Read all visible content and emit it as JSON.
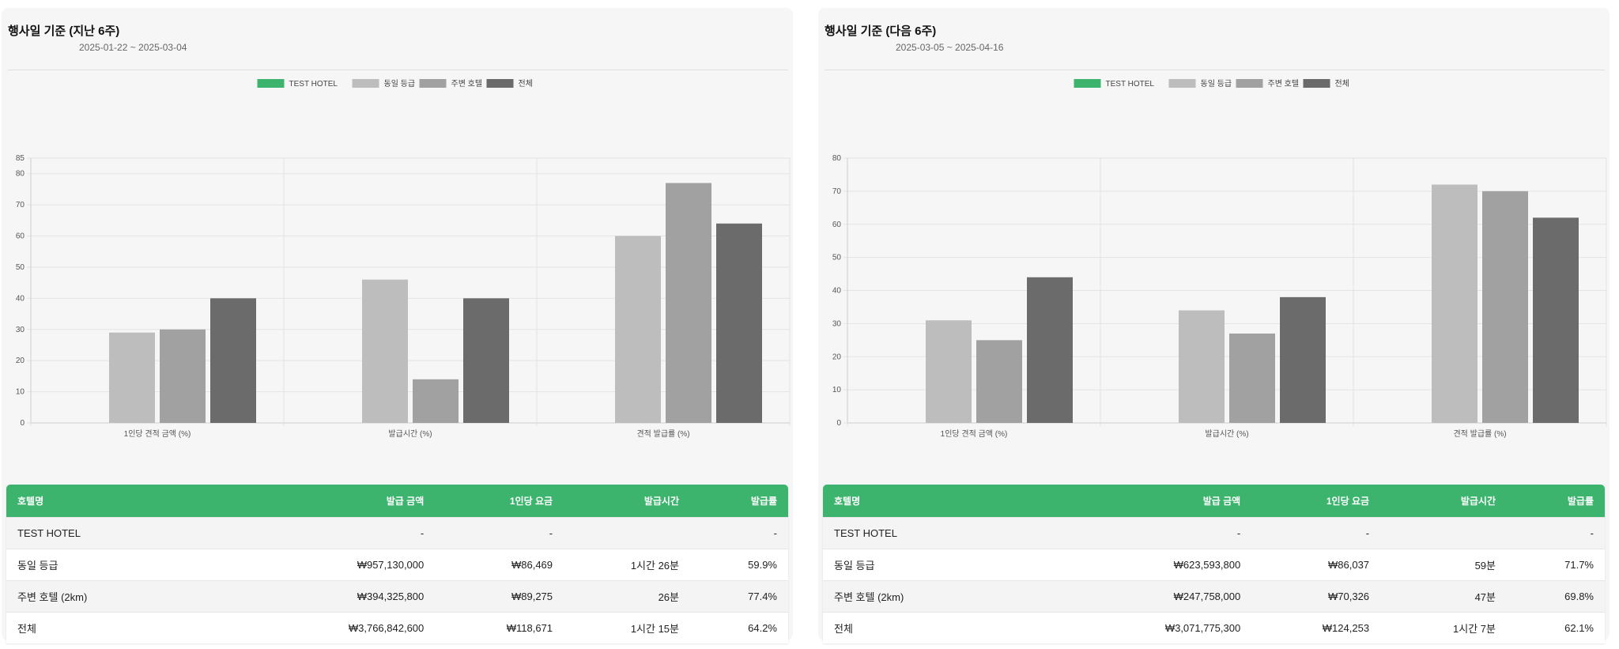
{
  "panels": [
    {
      "title": "행사일 기준 (지난 6주)",
      "date_range": "2025-01-22 ~ 2025-03-04",
      "table": {
        "headers": [
          "호텔명",
          "발급 금액",
          "1인당 요금",
          "발급시간",
          "발급률"
        ],
        "rows": [
          [
            "TEST HOTEL",
            "-",
            "-",
            "",
            "-"
          ],
          [
            "동일 등급",
            "₩957,130,000",
            "₩86,469",
            "1시간 26분",
            "59.9%"
          ],
          [
            "주변 호텔 (2km)",
            "₩394,325,800",
            "₩89,275",
            "26분",
            "77.4%"
          ],
          [
            "전체",
            "₩3,766,842,600",
            "₩118,671",
            "1시간 15분",
            "64.2%"
          ]
        ]
      }
    },
    {
      "title": "행사일 기준 (다음 6주)",
      "date_range": "2025-03-05 ~ 2025-04-16",
      "table": {
        "headers": [
          "호텔명",
          "발급 금액",
          "1인당 요금",
          "발급시간",
          "발급률"
        ],
        "rows": [
          [
            "TEST HOTEL",
            "-",
            "-",
            "",
            "-"
          ],
          [
            "동일 등급",
            "₩623,593,800",
            "₩86,037",
            "59분",
            "71.7%"
          ],
          [
            "주변 호텔 (2km)",
            "₩247,758,000",
            "₩70,326",
            "47분",
            "69.8%"
          ],
          [
            "전체",
            "₩3,071,775,300",
            "₩124,253",
            "1시간 7분",
            "62.1%"
          ]
        ]
      }
    }
  ],
  "colors": {
    "test_hotel": "#3db46d",
    "same_grade": "#bdbdbd",
    "nearby": "#a1a1a1",
    "all": "#6b6b6b"
  },
  "chart_data": [
    {
      "type": "bar",
      "title": "행사일 기준 (지난 6주)",
      "categories": [
        "1인당 견적 금액 (%)",
        "발급시간 (%)",
        "견적 발급률 (%)"
      ],
      "series": [
        {
          "name": "TEST HOTEL",
          "values": [
            0,
            0,
            0
          ]
        },
        {
          "name": "동일 등급",
          "values": [
            29,
            46,
            60
          ]
        },
        {
          "name": "주변 호텔",
          "values": [
            30,
            14,
            77
          ]
        },
        {
          "name": "전체",
          "values": [
            40,
            40,
            64
          ]
        }
      ],
      "ylim": [
        0,
        85
      ],
      "yticks": [
        0,
        10,
        20,
        30,
        40,
        50,
        60,
        70,
        80,
        85
      ],
      "legend": "top-center",
      "grid": true
    },
    {
      "type": "bar",
      "title": "행사일 기준 (다음 6주)",
      "categories": [
        "1인당 견적 금액 (%)",
        "발급시간 (%)",
        "견적 발급률 (%)"
      ],
      "series": [
        {
          "name": "TEST HOTEL",
          "values": [
            0,
            0,
            0
          ]
        },
        {
          "name": "동일 등급",
          "values": [
            31,
            34,
            72
          ]
        },
        {
          "name": "주변 호텔",
          "values": [
            25,
            27,
            70
          ]
        },
        {
          "name": "전체",
          "values": [
            44,
            38,
            62
          ]
        }
      ],
      "ylim": [
        0,
        80
      ],
      "yticks": [
        0,
        10,
        20,
        30,
        40,
        50,
        60,
        70,
        80
      ],
      "legend": "top-center",
      "grid": true
    }
  ]
}
